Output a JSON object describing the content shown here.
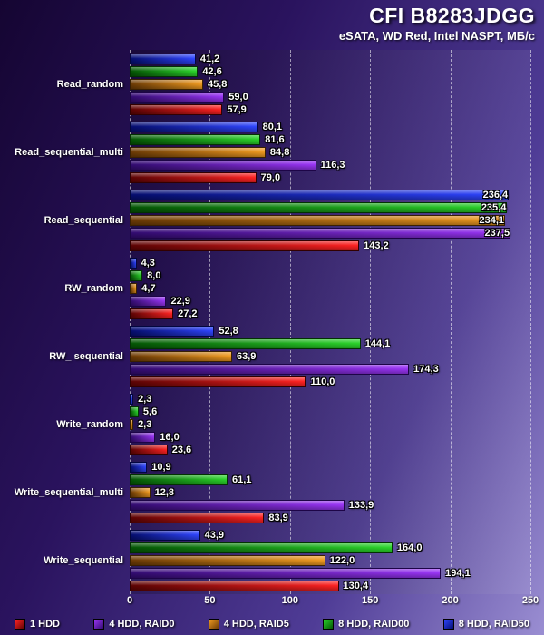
{
  "chart_data": {
    "type": "bar",
    "orientation": "horizontal",
    "title": "CFI B8283JDGG",
    "subtitle": "eSATA, WD Red, Intel NASPT, МБ/с",
    "unit": "МБ/с",
    "xlim": [
      0,
      250
    ],
    "ticks": [
      0,
      50,
      100,
      150,
      200,
      250
    ],
    "grid": "dashed-vertical",
    "legend_position": "bottom",
    "categories": [
      "Read_random",
      "Read_sequential_multi",
      "Read_sequential",
      "RW_random",
      "RW_ sequential",
      "Write_random",
      "Write_sequential_multi",
      "Write_sequential"
    ],
    "series": [
      {
        "name": "1 HDD",
        "bright": "#ff2222",
        "dark": "#5c0303",
        "border": "#320000",
        "values": [
          57.9,
          79.0,
          143.2,
          27.2,
          110.0,
          23.6,
          83.9,
          130.4
        ]
      },
      {
        "name": "4 HDD, RAID0",
        "bright": "#9a35f5",
        "dark": "#320b70",
        "border": "#1d0547",
        "values": [
          59.0,
          116.3,
          237.5,
          22.9,
          174.3,
          16.0,
          133.9,
          194.1
        ]
      },
      {
        "name": "4 HDD, RAID5",
        "bright": "#ef9a20",
        "dark": "#6b3a04",
        "border": "#3a2002",
        "values": [
          45.8,
          84.8,
          234.1,
          4.7,
          63.9,
          2.3,
          12.8,
          122.0
        ]
      },
      {
        "name": "8 HDD, RAID00",
        "bright": "#2bd42b",
        "dark": "#045504",
        "border": "#023202",
        "values": [
          42.6,
          81.6,
          235.4,
          8.0,
          144.1,
          5.6,
          61.1,
          164.0
        ]
      },
      {
        "name": "8 HDD, RAID50",
        "bright": "#2f45ff",
        "dark": "#050d6e",
        "border": "#03073f",
        "values": [
          41.2,
          80.1,
          236.4,
          4.3,
          52.8,
          2.3,
          10.9,
          43.9
        ]
      }
    ]
  }
}
